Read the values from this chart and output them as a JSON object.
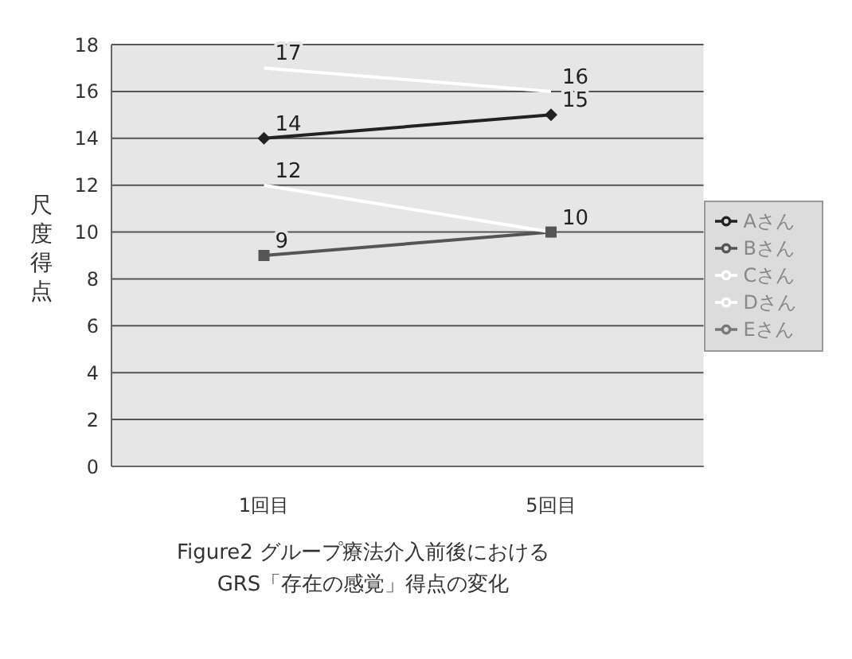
{
  "chart_data": {
    "type": "line",
    "title": "Figure2 グループ療法介入前後における\nGRS「存在の感覚」得点の変化",
    "ylabel": "尺度得点",
    "categories": [
      "1回目",
      "5回目"
    ],
    "series": [
      {
        "name": "Aさん",
        "color": "#222222",
        "marker": "diamond",
        "values": [
          14,
          15
        ]
      },
      {
        "name": "Bさん",
        "color": "#555555",
        "marker": "square",
        "values": [
          9,
          10
        ]
      },
      {
        "name": "Cさん",
        "color": "#ffffff",
        "marker": "none",
        "values": [
          17,
          16
        ]
      },
      {
        "name": "Dさん",
        "color": "#ffffff",
        "marker": "none",
        "values": [
          12,
          10
        ],
        "value_labels": [
          "12",
          null
        ]
      },
      {
        "name": "Eさん",
        "color": "#777777",
        "marker": "none",
        "values": [
          null,
          null
        ]
      }
    ],
    "ylim": [
      0,
      18
    ],
    "yticks": [
      0,
      2,
      4,
      6,
      8,
      10,
      12,
      14,
      16,
      18
    ],
    "grid": "y",
    "legend": "right",
    "data_labels": true
  }
}
